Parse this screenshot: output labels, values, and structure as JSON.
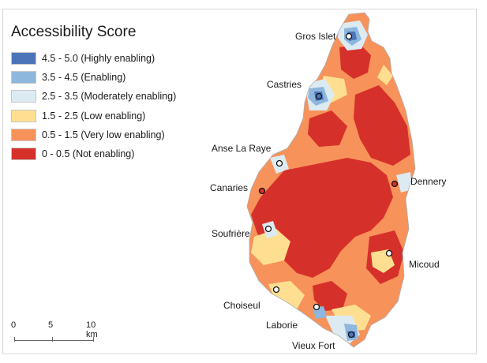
{
  "legend": {
    "title": "Accessibility Score",
    "items": [
      {
        "label": "4.5 - 5.0 (Highly enabling)",
        "color": "#4c74b9"
      },
      {
        "label": "3.5 - 4.5 (Enabling)",
        "color": "#8db7dd"
      },
      {
        "label": "2.5 - 3.5 (Moderately enabling)",
        "color": "#dcebf2"
      },
      {
        "label": "1.5 - 2.5 (Low enabling)",
        "color": "#fedf91"
      },
      {
        "label": "0.5 - 1.5 (Very low enabling)",
        "color": "#f7925a"
      },
      {
        "label": "0 - 0.5 (Not enabling)",
        "color": "#d6302a"
      }
    ]
  },
  "scale": {
    "labels": [
      "0",
      "5",
      "10 km"
    ]
  },
  "towns": [
    {
      "name": "Gros Islet",
      "id": "gros-islet"
    },
    {
      "name": "Castries",
      "id": "castries"
    },
    {
      "name": "Anse La Raye",
      "id": "anse-la-raye"
    },
    {
      "name": "Canaries",
      "id": "canaries"
    },
    {
      "name": "Dennery",
      "id": "dennery"
    },
    {
      "name": "Soufrière",
      "id": "soufriere"
    },
    {
      "name": "Micoud",
      "id": "micoud"
    },
    {
      "name": "Choiseul",
      "id": "choiseul"
    },
    {
      "name": "Laborie",
      "id": "laborie"
    },
    {
      "name": "Vieux Fort",
      "id": "vieux-fort"
    }
  ]
}
